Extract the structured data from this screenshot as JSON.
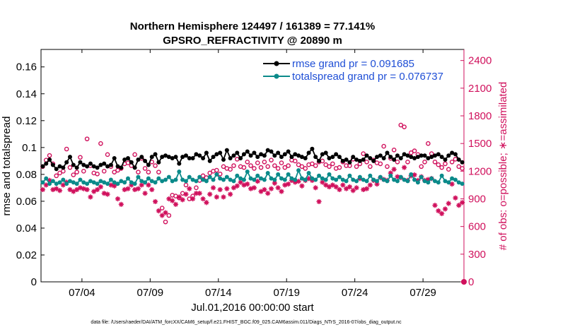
{
  "colors": {
    "rmse": "#000000",
    "spread": "#0b8a8a",
    "obs": "#d0105c",
    "axis": "#000000",
    "legend_text": "#1f4fd6"
  },
  "chart_data": {
    "type": "line",
    "title": "Northern Hemisphere 124497 / 161389 = 77.141%",
    "subtitle": "GPSRO_REFRACTIVITY @ 20890 m",
    "xlabel": "Jul.01,2016 00:00:00 start",
    "ylabel_left": "rmse and totalspread",
    "ylabel_right": "# of obs: o=possible; ∗=assimilated",
    "xlim": [
      0,
      31
    ],
    "ylim_left": [
      0,
      0.173
    ],
    "ylim_right": [
      0,
      2520
    ],
    "xticks": [
      {
        "x": 3,
        "label": "07/04"
      },
      {
        "x": 8,
        "label": "07/09"
      },
      {
        "x": 13,
        "label": "07/14"
      },
      {
        "x": 18,
        "label": "07/19"
      },
      {
        "x": 23,
        "label": "07/24"
      },
      {
        "x": 28,
        "label": "07/29"
      }
    ],
    "yticks_left": [
      {
        "v": 0,
        "label": "0"
      },
      {
        "v": 0.02,
        "label": "0.02"
      },
      {
        "v": 0.04,
        "label": "0.04"
      },
      {
        "v": 0.06,
        "label": "0.06"
      },
      {
        "v": 0.08,
        "label": "0.08"
      },
      {
        "v": 0.1,
        "label": "0.1"
      },
      {
        "v": 0.12,
        "label": "0.12"
      },
      {
        "v": 0.14,
        "label": "0.14"
      },
      {
        "v": 0.16,
        "label": "0.16"
      }
    ],
    "yticks_right": [
      {
        "v": 0,
        "label": "0"
      },
      {
        "v": 300,
        "label": "300"
      },
      {
        "v": 600,
        "label": "600"
      },
      {
        "v": 900,
        "label": "900"
      },
      {
        "v": 1200,
        "label": "1200"
      },
      {
        "v": 1500,
        "label": "1500"
      },
      {
        "v": 1800,
        "label": "1800"
      },
      {
        "v": 2100,
        "label": "2100"
      },
      {
        "v": 2400,
        "label": "2400"
      }
    ],
    "legend": [
      {
        "key": "rmse",
        "label": "rmse grand pr = 0.091685"
      },
      {
        "key": "spread",
        "label": "totalspread grand pr = 0.076737"
      }
    ],
    "legend_position": "top-right",
    "series": [
      {
        "name": "rmse",
        "x": [
          0.125,
          0.375,
          0.625,
          0.875,
          1.125,
          1.375,
          1.625,
          1.875,
          2.125,
          2.375,
          2.625,
          2.875,
          3.125,
          3.375,
          3.625,
          3.875,
          4.125,
          4.375,
          4.625,
          4.875,
          5.125,
          5.375,
          5.625,
          5.875,
          6.125,
          6.375,
          6.625,
          6.875,
          7.125,
          7.375,
          7.625,
          7.875,
          8.125,
          8.375,
          8.625,
          8.875,
          9.125,
          9.375,
          9.625,
          9.875,
          10.125,
          10.375,
          10.625,
          10.875,
          11.125,
          11.375,
          11.625,
          11.875,
          12.125,
          12.375,
          12.625,
          12.875,
          13.125,
          13.375,
          13.625,
          13.875,
          14.125,
          14.375,
          14.625,
          14.875,
          15.125,
          15.375,
          15.625,
          15.875,
          16.125,
          16.375,
          16.625,
          16.875,
          17.125,
          17.375,
          17.625,
          17.875,
          18.125,
          18.375,
          18.625,
          18.875,
          19.125,
          19.375,
          19.625,
          19.875,
          20.125,
          20.375,
          20.625,
          20.875,
          21.125,
          21.375,
          21.625,
          21.875,
          22.125,
          22.375,
          22.625,
          22.875,
          23.125,
          23.375,
          23.625,
          23.875,
          24.125,
          24.375,
          24.625,
          24.875,
          25.125,
          25.375,
          25.625,
          25.875,
          26.125,
          26.375,
          26.625,
          26.875,
          27.125,
          27.375,
          27.625,
          27.875,
          28.125,
          28.375,
          28.625,
          28.875,
          29.125,
          29.375,
          29.625,
          29.875,
          30.125,
          30.375,
          30.625,
          30.875
        ],
        "values": [
          0.086,
          0.088,
          0.091,
          0.087,
          0.084,
          0.086,
          0.085,
          0.089,
          0.093,
          0.087,
          0.085,
          0.089,
          0.087,
          0.086,
          0.088,
          0.086,
          0.085,
          0.087,
          0.088,
          0.086,
          0.087,
          0.092,
          0.086,
          0.085,
          0.091,
          0.092,
          0.089,
          0.085,
          0.091,
          0.093,
          0.09,
          0.087,
          0.093,
          0.095,
          0.089,
          0.093,
          0.094,
          0.093,
          0.092,
          0.093,
          0.088,
          0.093,
          0.094,
          0.092,
          0.092,
          0.095,
          0.094,
          0.092,
          0.096,
          0.09,
          0.093,
          0.095,
          0.096,
          0.091,
          0.098,
          0.092,
          0.094,
          0.096,
          0.092,
          0.095,
          0.097,
          0.094,
          0.096,
          0.093,
          0.095,
          0.094,
          0.098,
          0.097,
          0.094,
          0.096,
          0.093,
          0.095,
          0.097,
          0.093,
          0.095,
          0.094,
          0.093,
          0.092,
          0.096,
          0.099,
          0.093,
          0.09,
          0.095,
          0.096,
          0.092,
          0.093,
          0.095,
          0.093,
          0.09,
          0.091,
          0.089,
          0.093,
          0.091,
          0.09,
          0.091,
          0.094,
          0.092,
          0.09,
          0.093,
          0.094,
          0.092,
          0.096,
          0.093,
          0.091,
          0.094,
          0.092,
          0.095,
          0.094,
          0.093,
          0.092,
          0.093,
          0.094,
          0.094,
          0.092,
          0.093,
          0.094,
          0.095,
          0.093,
          0.091,
          0.094,
          0.096,
          0.095,
          0.091,
          0.089
        ]
      },
      {
        "name": "totalspread",
        "x": [
          0.125,
          0.375,
          0.625,
          0.875,
          1.125,
          1.375,
          1.625,
          1.875,
          2.125,
          2.375,
          2.625,
          2.875,
          3.125,
          3.375,
          3.625,
          3.875,
          4.125,
          4.375,
          4.625,
          4.875,
          5.125,
          5.375,
          5.625,
          5.875,
          6.125,
          6.375,
          6.625,
          6.875,
          7.125,
          7.375,
          7.625,
          7.875,
          8.125,
          8.375,
          8.625,
          8.875,
          9.125,
          9.375,
          9.625,
          9.875,
          10.125,
          10.375,
          10.625,
          10.875,
          11.125,
          11.375,
          11.625,
          11.875,
          12.125,
          12.375,
          12.625,
          12.875,
          13.125,
          13.375,
          13.625,
          13.875,
          14.125,
          14.375,
          14.625,
          14.875,
          15.125,
          15.375,
          15.625,
          15.875,
          16.125,
          16.375,
          16.625,
          16.875,
          17.125,
          17.375,
          17.625,
          17.875,
          18.125,
          18.375,
          18.625,
          18.875,
          19.125,
          19.375,
          19.625,
          19.875,
          20.125,
          20.375,
          20.625,
          20.875,
          21.125,
          21.375,
          21.625,
          21.875,
          22.125,
          22.375,
          22.625,
          22.875,
          23.125,
          23.375,
          23.625,
          23.875,
          24.125,
          24.375,
          24.625,
          24.875,
          25.125,
          25.375,
          25.625,
          25.875,
          26.125,
          26.375,
          26.625,
          26.875,
          27.125,
          27.375,
          27.625,
          27.875,
          28.125,
          28.375,
          28.625,
          28.875,
          29.125,
          29.375,
          29.625,
          29.875,
          30.125,
          30.375,
          30.625,
          30.875
        ],
        "values": [
          0.074,
          0.077,
          0.073,
          0.075,
          0.073,
          0.074,
          0.076,
          0.073,
          0.075,
          0.074,
          0.073,
          0.076,
          0.074,
          0.073,
          0.075,
          0.074,
          0.073,
          0.075,
          0.074,
          0.073,
          0.076,
          0.074,
          0.073,
          0.075,
          0.074,
          0.077,
          0.074,
          0.073,
          0.078,
          0.075,
          0.074,
          0.077,
          0.075,
          0.074,
          0.077,
          0.075,
          0.076,
          0.078,
          0.075,
          0.076,
          0.082,
          0.076,
          0.075,
          0.078,
          0.076,
          0.075,
          0.078,
          0.076,
          0.075,
          0.078,
          0.076,
          0.08,
          0.077,
          0.076,
          0.078,
          0.076,
          0.075,
          0.079,
          0.077,
          0.076,
          0.082,
          0.077,
          0.076,
          0.079,
          0.077,
          0.076,
          0.081,
          0.077,
          0.076,
          0.08,
          0.077,
          0.076,
          0.08,
          0.077,
          0.076,
          0.083,
          0.077,
          0.076,
          0.081,
          0.077,
          0.076,
          0.079,
          0.077,
          0.076,
          0.08,
          0.077,
          0.076,
          0.078,
          0.076,
          0.075,
          0.079,
          0.076,
          0.075,
          0.078,
          0.076,
          0.075,
          0.079,
          0.076,
          0.075,
          0.078,
          0.076,
          0.075,
          0.079,
          0.076,
          0.075,
          0.078,
          0.076,
          0.075,
          0.08,
          0.076,
          0.074,
          0.078,
          0.075,
          0.074,
          0.077,
          0.075,
          0.074,
          0.079,
          0.075,
          0.074,
          0.077,
          0.076,
          0.074,
          0.073
        ]
      },
      {
        "name": "obs possible",
        "x": [
          0.125,
          0.375,
          0.625,
          0.875,
          1.125,
          1.375,
          1.625,
          1.875,
          2.125,
          2.375,
          2.625,
          2.875,
          3.125,
          3.375,
          3.625,
          3.875,
          4.125,
          4.375,
          4.625,
          4.875,
          5.125,
          5.375,
          5.625,
          5.875,
          6.125,
          6.375,
          6.625,
          6.875,
          7.125,
          7.375,
          7.625,
          7.875,
          8.125,
          8.375,
          8.625,
          8.875,
          9.125,
          9.375,
          9.625,
          9.875,
          10.125,
          10.375,
          10.625,
          10.875,
          11.125,
          11.375,
          11.625,
          11.875,
          12.125,
          12.375,
          12.625,
          12.875,
          13.125,
          13.375,
          13.625,
          13.875,
          14.125,
          14.375,
          14.625,
          14.875,
          15.125,
          15.375,
          15.625,
          15.875,
          16.125,
          16.375,
          16.625,
          16.875,
          17.125,
          17.375,
          17.625,
          17.875,
          18.125,
          18.375,
          18.625,
          18.875,
          19.125,
          19.375,
          19.625,
          19.875,
          20.125,
          20.375,
          20.625,
          20.875,
          21.125,
          21.375,
          21.625,
          21.875,
          22.125,
          22.375,
          22.625,
          22.875,
          23.125,
          23.375,
          23.625,
          23.875,
          24.125,
          24.375,
          24.625,
          24.875,
          25.125,
          25.375,
          25.625,
          25.875,
          26.125,
          26.375,
          26.625,
          26.875,
          27.125,
          27.375,
          27.625,
          27.875,
          28.125,
          28.375,
          28.625,
          28.875,
          29.125,
          29.375,
          29.625,
          29.875,
          30.125,
          30.375,
          30.625,
          30.875
        ],
        "values": [
          1250,
          1320,
          1370,
          1280,
          1150,
          1180,
          1200,
          1440,
          1240,
          1160,
          1190,
          1350,
          1200,
          1550,
          1260,
          1180,
          1170,
          1500,
          1200,
          1380,
          1250,
          1190,
          1210,
          1230,
          1280,
          1290,
          1260,
          1380,
          1190,
          1340,
          1230,
          1190,
          1300,
          1260,
          1190,
          800,
          650,
          720,
          940,
          930,
          910,
          960,
          1050,
          900,
          930,
          1020,
          1100,
          1150,
          1130,
          1180,
          1200,
          1210,
          1170,
          1250,
          1230,
          1220,
          1260,
          1330,
          1250,
          1240,
          1300,
          1260,
          1230,
          1290,
          1240,
          1300,
          1250,
          1320,
          1260,
          1230,
          1290,
          1240,
          1260,
          1320,
          1310,
          1270,
          1250,
          1230,
          1270,
          1280,
          1260,
          1300,
          1310,
          1270,
          1250,
          1280,
          1230,
          1240,
          1300,
          1260,
          1260,
          1330,
          1250,
          1280,
          1390,
          1300,
          1250,
          1320,
          1290,
          1280,
          1470,
          1250,
          1340,
          1430,
          1300,
          1700,
          1680,
          1300,
          1400,
          1420,
          1380,
          1250,
          1300,
          1500,
          1390,
          1300,
          1270,
          1240,
          1280,
          1220,
          1300,
          1330,
          1250,
          1230
        ]
      },
      {
        "name": "obs assimilated",
        "x": [
          0.125,
          0.375,
          0.625,
          0.875,
          1.125,
          1.375,
          1.625,
          1.875,
          2.125,
          2.375,
          2.625,
          2.875,
          3.125,
          3.375,
          3.625,
          3.875,
          4.125,
          4.375,
          4.625,
          4.875,
          5.125,
          5.375,
          5.625,
          5.875,
          6.125,
          6.375,
          6.625,
          6.875,
          7.125,
          7.375,
          7.625,
          7.875,
          8.125,
          8.375,
          8.625,
          8.875,
          9.125,
          9.375,
          9.625,
          9.875,
          10.125,
          10.375,
          10.625,
          10.875,
          11.125,
          11.375,
          11.625,
          11.875,
          12.125,
          12.375,
          12.625,
          12.875,
          13.125,
          13.375,
          13.625,
          13.875,
          14.125,
          14.375,
          14.625,
          14.875,
          15.125,
          15.375,
          15.625,
          15.875,
          16.125,
          16.375,
          16.625,
          16.875,
          17.125,
          17.375,
          17.625,
          17.875,
          18.125,
          18.375,
          18.625,
          18.875,
          19.125,
          19.375,
          19.625,
          19.875,
          20.125,
          20.375,
          20.625,
          20.875,
          21.125,
          21.375,
          21.625,
          21.875,
          22.125,
          22.375,
          22.625,
          22.875,
          23.125,
          23.375,
          23.625,
          23.875,
          24.125,
          24.375,
          24.625,
          24.875,
          25.125,
          25.375,
          25.625,
          25.875,
          26.125,
          26.375,
          26.625,
          26.875,
          27.125,
          27.375,
          27.625,
          27.875,
          28.125,
          28.375,
          28.625,
          28.875,
          29.125,
          29.375,
          29.625,
          29.875,
          30.125,
          30.375,
          30.625,
          30.875
        ],
        "values": [
          1000,
          1050,
          1100,
          1000,
          1010,
          990,
          1050,
          1080,
          1000,
          980,
          1000,
          1020,
          1010,
          1000,
          920,
          980,
          1000,
          1030,
          960,
          950,
          1050,
          1040,
          900,
          840,
          1000,
          1010,
          1050,
          1000,
          1010,
          1050,
          960,
          1050,
          1000,
          870,
          770,
          720,
          750,
          900,
          880,
          840,
          920,
          890,
          950,
          1010,
          900,
          960,
          960,
          900,
          860,
          950,
          1020,
          920,
          1000,
          920,
          1010,
          950,
          1020,
          1040,
          1080,
          1050,
          1060,
          1010,
          1020,
          1090,
          980,
          1000,
          960,
          1010,
          1070,
          1020,
          980,
          1050,
          1060,
          1100,
          1080,
          1090,
          1040,
          1100,
          1120,
          1100,
          1020,
          870,
          1080,
          1050,
          1030,
          1050,
          1030,
          1000,
          1050,
          1010,
          1030,
          990,
          1020,
          1120,
          1000,
          1010,
          1050,
          1100,
          1060,
          1130,
          1110,
          1100,
          1180,
          1220,
          1140,
          1130,
          1240,
          1100,
          1150,
          1160,
          1100,
          1140,
          1100,
          1110,
          1120,
          830,
          770,
          740,
          790,
          850,
          1060,
          910,
          830,
          860
        ]
      }
    ],
    "endpoint_marker": {
      "x": 31,
      "v": 0
    }
  },
  "footnote": "data file: /Users/raeder/DAI/ATM_forcXX/CAM6_setup/f.e21.FHIST_BGC.f09_025.CAM6assim.011/Diags_NTrS_2016-07/obs_diag_output.nc"
}
